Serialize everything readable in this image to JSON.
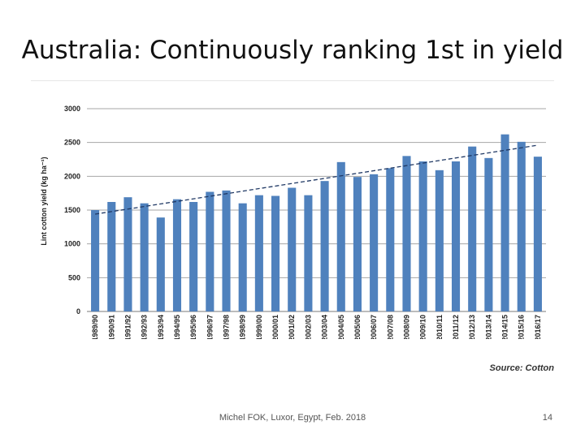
{
  "slide": {
    "title": "Australia: Continuously ranking 1st in yield",
    "source": "Source: Cotton",
    "footer": "Michel FOK, Luxor, Egypt, Feb. 2018",
    "page_number": "14"
  },
  "colors": {
    "bar": "#4f81bd",
    "gridline": "#a6a6a6",
    "trendline": "#1f3864"
  },
  "chart_data": {
    "type": "bar",
    "title": "",
    "xlabel": "",
    "ylabel": "Lint cotton yield (kg ha⁻¹)",
    "ylim": [
      0,
      3000
    ],
    "yticks": [
      0,
      500,
      1000,
      1500,
      2000,
      2500,
      3000
    ],
    "grid": true,
    "trendline": {
      "style": "dashed",
      "start": 1440,
      "end": 2460
    },
    "categories": [
      "1989/90",
      "1990/91",
      "1991/92",
      "1992/93",
      "1993/94",
      "1994/95",
      "1995/96",
      "1996/97",
      "1997/98",
      "1998/99",
      "1999/00",
      "2000/01",
      "2001/02",
      "2002/03",
      "2003/04",
      "2004/05",
      "2005/06",
      "2006/07",
      "2007/08",
      "2008/09",
      "2009/10",
      "2010/11",
      "2011/12",
      "2012/13",
      "2013/14",
      "2014/15",
      "2015/16",
      "2016/17"
    ],
    "values": [
      1500,
      1620,
      1690,
      1600,
      1390,
      1660,
      1620,
      1770,
      1790,
      1600,
      1720,
      1710,
      1830,
      1720,
      1930,
      2210,
      1990,
      2030,
      2120,
      2300,
      2220,
      2090,
      2220,
      2440,
      2270,
      2620,
      2510,
      2290
    ]
  }
}
